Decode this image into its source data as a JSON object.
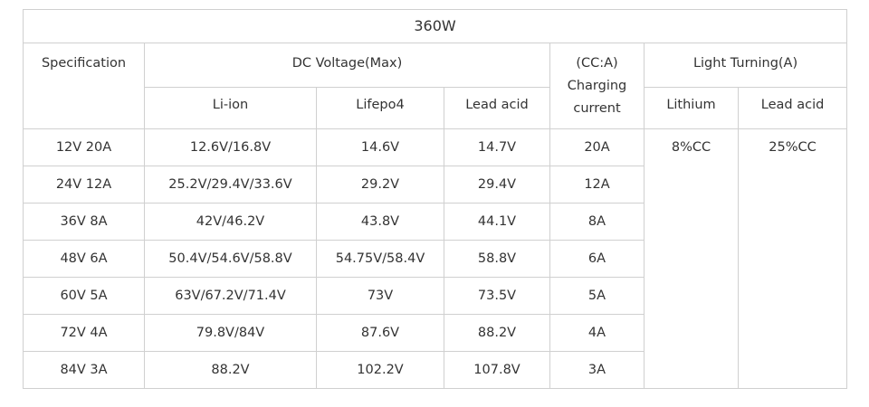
{
  "table": {
    "title": "360W",
    "header": {
      "spec": "Specification",
      "dc_voltage": "DC Voltage(Max)",
      "charging": "(CC:A) Charging current",
      "light": "Light Turning(A)",
      "li_ion": "Li-ion",
      "lifepo4": "Lifepo4",
      "lead_acid": "Lead acid",
      "lithium": "Lithium",
      "light_lead_acid": "Lead acid"
    },
    "rows": [
      [
        "12V 20A",
        "12.6V/16.8V",
        "14.6V",
        "14.7V",
        "20A"
      ],
      [
        "24V 12A",
        "25.2V/29.4V/33.6V",
        "29.2V",
        "29.4V",
        "12A"
      ],
      [
        "36V 8A",
        "42V/46.2V",
        "43.8V",
        "44.1V",
        "8A"
      ],
      [
        "48V 6A",
        "50.4V/54.6V/58.8V",
        "54.75V/58.4V",
        "58.8V",
        "6A"
      ],
      [
        "60V 5A",
        "63V/67.2V/71.4V",
        "73V",
        "73.5V",
        "5A"
      ],
      [
        "72V 4A",
        "79.8V/84V",
        "87.6V",
        "88.2V",
        "4A"
      ],
      [
        "84V 3A",
        "88.2V",
        "102.2V",
        "107.8V",
        "3A"
      ]
    ],
    "light_lithium": "8%CC",
    "light_lead_acid": "25%CC"
  }
}
